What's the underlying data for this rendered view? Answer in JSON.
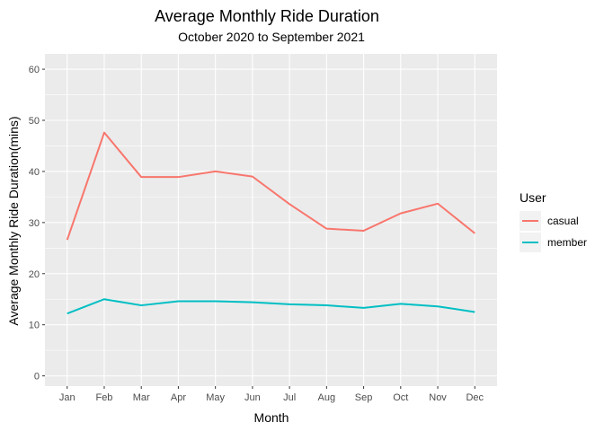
{
  "chart_data": {
    "type": "line",
    "title": "Average Monthly Ride Duration",
    "subtitle": "October 2020 to September 2021",
    "xlabel": "Month",
    "ylabel": "Average Monthly Ride Duration(mins)",
    "categories": [
      "Jan",
      "Feb",
      "Mar",
      "Apr",
      "May",
      "Jun",
      "Jul",
      "Aug",
      "Sep",
      "Oct",
      "Nov",
      "Dec"
    ],
    "yticks": [
      0,
      10,
      20,
      30,
      40,
      50,
      60
    ],
    "ylim": [
      -2,
      63
    ],
    "grid": true,
    "legend": {
      "title": "User",
      "placement": "right"
    },
    "series": [
      {
        "name": "casual",
        "color": "#F8766D",
        "values": [
          26.6,
          47.6,
          38.9,
          38.9,
          40.0,
          39.0,
          33.6,
          28.8,
          28.4,
          31.8,
          33.7,
          27.9
        ]
      },
      {
        "name": "member",
        "color": "#00BFC4",
        "values": [
          12.2,
          15.0,
          13.8,
          14.6,
          14.6,
          14.4,
          14.0,
          13.8,
          13.3,
          14.1,
          13.6,
          12.5
        ]
      }
    ]
  }
}
